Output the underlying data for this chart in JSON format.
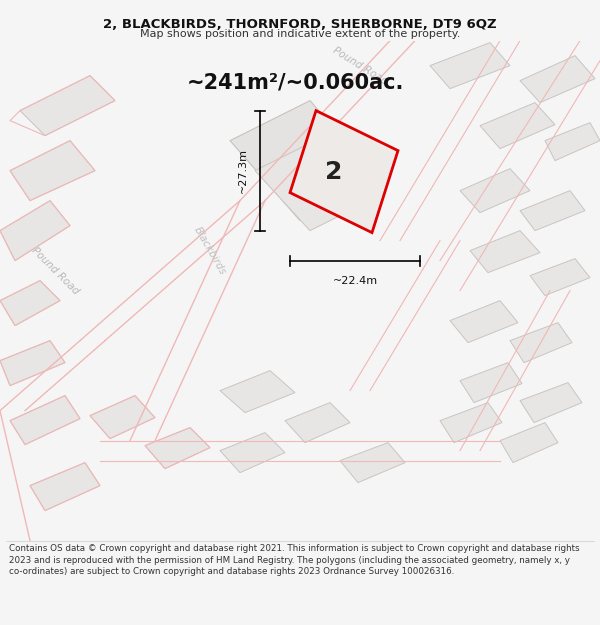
{
  "title_line1": "2, BLACKBIRDS, THORNFORD, SHERBORNE, DT9 6QZ",
  "title_line2": "Map shows position and indicative extent of the property.",
  "area_text": "~241m²/~0.060ac.",
  "dim_width": "~22.4m",
  "dim_height": "~27.3m",
  "plot_number": "2",
  "footer_text": "Contains OS data © Crown copyright and database right 2021. This information is subject to Crown copyright and database rights 2023 and is reproduced with the permission of HM Land Registry. The polygons (including the associated geometry, namely x, y co-ordinates) are subject to Crown copyright and database rights 2023 Ordnance Survey 100026316.",
  "bg_color": "#f5f5f5",
  "map_bg": "#f0efee",
  "bld_fc": "#e8e6e4",
  "bld_ec": "#c8c5c2",
  "road_line_color": "#f0b8b8",
  "red_outline": "#dd0000",
  "road_label_color": "#b8b8b8",
  "street_label_color": "#c0c0c0",
  "dim_line_color": "#111111",
  "text_color": "#111111"
}
